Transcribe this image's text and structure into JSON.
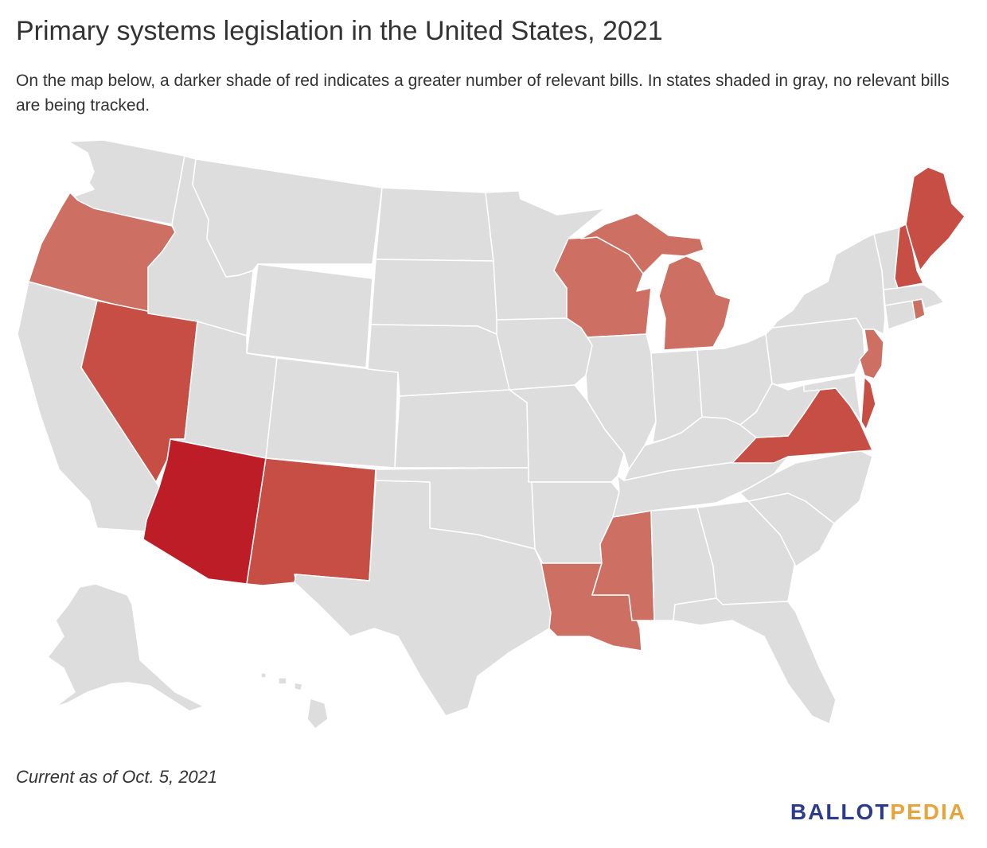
{
  "title": "Primary systems legislation in the United States, 2021",
  "subtitle": "On the map below, a darker shade of red indicates a greater number of relevant bills. In states shaded in gray, no relevant bills are being tracked.",
  "footnote": "Current as of Oct. 5, 2021",
  "logo": {
    "part1": "BALLOT",
    "part2": "PEDIA"
  },
  "colors": {
    "none": "#dddddd",
    "level1": "#cd7063",
    "level2": "#c74e45",
    "level3": "#bd1d26",
    "logo_blue": "#2b3c8f",
    "logo_orange": "#e8a33d"
  },
  "map": {
    "shading_levels": {
      "Arizona": "level3",
      "Nevada": "level2",
      "New Mexico": "level2",
      "Maine": "level2",
      "New Hampshire": "level2",
      "Virginia": "level2",
      "Delaware": "level2",
      "Oregon": "level1",
      "Wisconsin": "level1",
      "Michigan": "level1",
      "Louisiana": "level1",
      "Mississippi": "level1",
      "New Jersey": "level1",
      "Rhode Island": "level1"
    }
  }
}
